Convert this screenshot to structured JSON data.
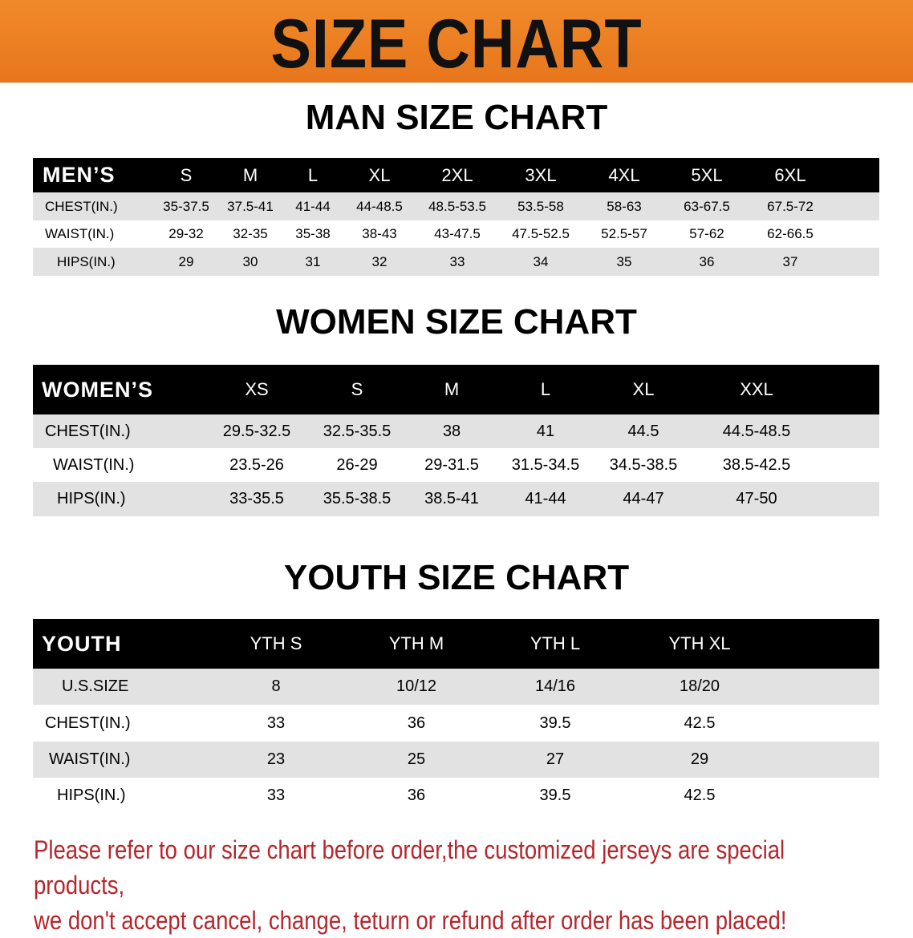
{
  "banner_title": "SIZE CHART",
  "men": {
    "title": "MAN SIZE CHART",
    "header": [
      "MEN’S",
      "S",
      "M",
      "L",
      "XL",
      "2XL",
      "3XL",
      "4XL",
      "5XL",
      "6XL"
    ],
    "rows": [
      [
        "CHEST(IN.)",
        "35-37.5",
        "37.5-41",
        "41-44",
        "44-48.5",
        "48.5-53.5",
        "53.5-58",
        "58-63",
        "63-67.5",
        "67.5-72"
      ],
      [
        "WAIST(IN.)",
        "29-32",
        "32-35",
        "35-38",
        "38-43",
        "43-47.5",
        "47.5-52.5",
        "52.5-57",
        "57-62",
        "62-66.5"
      ],
      [
        "HIPS(IN.)",
        "29",
        "30",
        "31",
        "32",
        "33",
        "34",
        "35",
        "36",
        "37"
      ]
    ]
  },
  "women": {
    "title": "WOMEN SIZE CHART",
    "header": [
      "WOMEN’S",
      "XS",
      "S",
      "M",
      "L",
      "XL",
      "XXL"
    ],
    "rows": [
      [
        "CHEST(IN.)",
        "29.5-32.5",
        "32.5-35.5",
        "38",
        "41",
        "44.5",
        "44.5-48.5"
      ],
      [
        "WAIST(IN.)",
        "23.5-26",
        "26-29",
        "29-31.5",
        "31.5-34.5",
        "34.5-38.5",
        "38.5-42.5"
      ],
      [
        "HIPS(IN.)",
        "33-35.5",
        "35.5-38.5",
        "38.5-41",
        "41-44",
        "44-47",
        "47-50"
      ]
    ]
  },
  "youth": {
    "title": "YOUTH SIZE CHART",
    "header": [
      "YOUTH",
      "YTH S",
      "YTH M",
      "YTH L",
      "YTH XL"
    ],
    "rows": [
      [
        "U.S.SIZE",
        "8",
        "10/12",
        "14/16",
        "18/20"
      ],
      [
        "CHEST(IN.)",
        "33",
        "36",
        "39.5",
        "42.5"
      ],
      [
        "WAIST(IN.)",
        "23",
        "25",
        "27",
        "29"
      ],
      [
        "HIPS(IN.)",
        "33",
        "36",
        "39.5",
        "42.5"
      ]
    ]
  },
  "notice": [
    "Please refer to our size chart before order,the customized jerseys are special products,",
    "we don't accept cancel, change, teturn or refund after order has been placed!"
  ],
  "colors": {
    "banner": "#e8761c",
    "header_row": "#000000",
    "stripe": "#e2e2e2",
    "notice": "#b5272c"
  }
}
